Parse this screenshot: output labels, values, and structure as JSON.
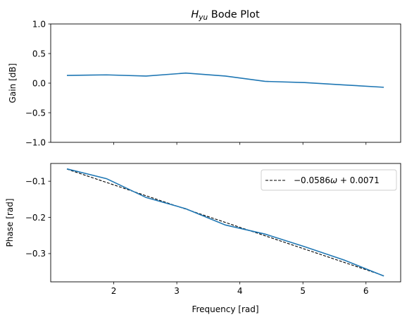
{
  "chart_data": [
    {
      "type": "line",
      "title_main": "H",
      "title_sub": "yu",
      "title_rest": " Bode Plot",
      "xlabel": "",
      "ylabel": "Gain [dB]",
      "xlim": [
        1.0,
        6.55
      ],
      "ylim": [
        -1.0,
        1.0
      ],
      "yticks": [
        -1.0,
        -0.5,
        0.0,
        0.5,
        1.0
      ],
      "ytick_labels": [
        "−1.0",
        "−0.5",
        "0.0",
        "0.5",
        "1.0"
      ],
      "xticks": [
        2,
        3,
        4,
        5,
        6
      ],
      "grid": false,
      "color": "#1f77b4",
      "series": [
        {
          "x": [
            1.257,
            1.885,
            2.513,
            3.142,
            3.77,
            4.398,
            5.027,
            5.655,
            6.283
          ],
          "values": [
            0.13,
            0.14,
            0.12,
            0.17,
            0.12,
            0.03,
            0.01,
            -0.03,
            -0.07
          ]
        }
      ]
    },
    {
      "type": "line",
      "xlabel": "Frequency [rad]",
      "ylabel": "Phase [rad]",
      "xlim": [
        1.0,
        6.55
      ],
      "ylim": [
        -0.378,
        -0.051
      ],
      "yticks": [
        -0.3,
        -0.2,
        -0.1
      ],
      "ytick_labels": [
        "−0.3",
        "−0.2",
        "−0.1"
      ],
      "xticks": [
        2,
        3,
        4,
        5,
        6
      ],
      "xtick_labels": [
        "2",
        "3",
        "4",
        "5",
        "6"
      ],
      "grid": false,
      "legend_position": "top-right",
      "color": "#1f77b4",
      "series": [
        {
          "x": [
            1.257,
            1.885,
            2.513,
            3.142,
            3.77,
            4.398,
            5.027,
            5.655,
            6.283
          ],
          "values": [
            -0.066,
            -0.093,
            -0.145,
            -0.176,
            -0.221,
            -0.246,
            -0.281,
            -0.318,
            -0.362
          ]
        },
        {
          "name_main": "−0.0586",
          "name_sym": "ω",
          "name_rest": " + 0.0071",
          "style": "dashed",
          "color": "#000000",
          "x": [
            1.257,
            6.283
          ],
          "values": [
            -0.0666,
            -0.3611
          ]
        }
      ]
    }
  ]
}
